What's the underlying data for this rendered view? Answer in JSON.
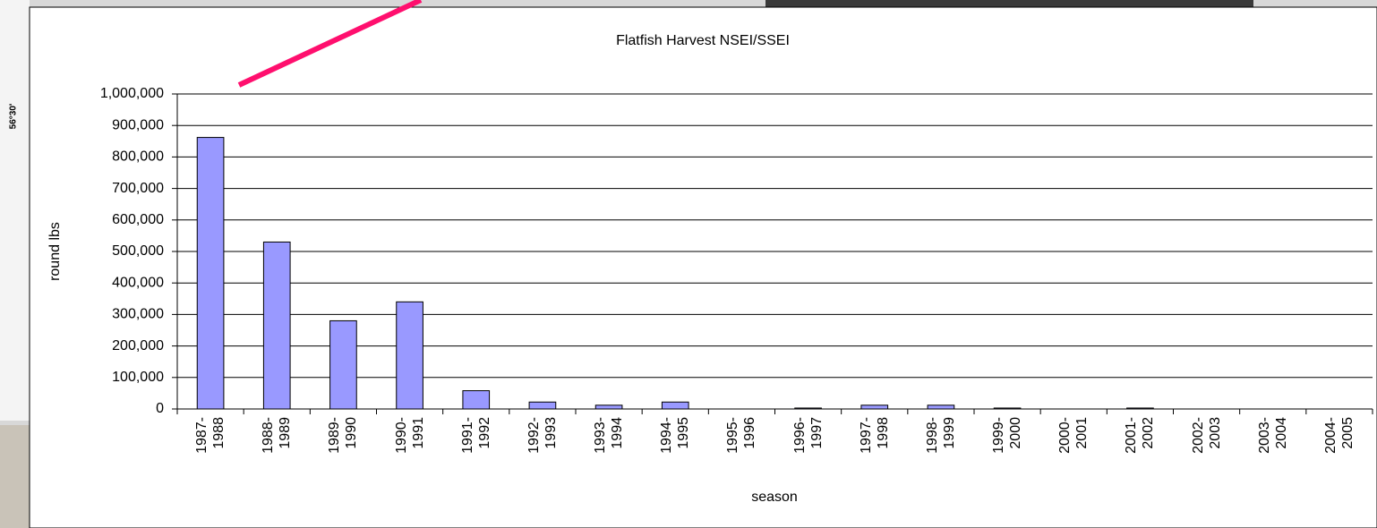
{
  "background": {
    "map_label": "56°30'"
  },
  "chart_data": {
    "type": "bar",
    "title": "Flatfish Harvest NSEI/SSEI",
    "x_label": "season",
    "y_label": "round lbs",
    "categories": [
      "1987-1988",
      "1988-1989",
      "1989-1990",
      "1990-1991",
      "1991-1992",
      "1992-1993",
      "1993-1994",
      "1994-1995",
      "1995-1996",
      "1996-1997",
      "1997-1998",
      "1998-1999",
      "1999-2000",
      "2000-2001",
      "2001-2002",
      "2002-2003",
      "2003-2004",
      "2004-2005"
    ],
    "values": [
      862000,
      530000,
      280000,
      340000,
      58000,
      22000,
      12000,
      22000,
      0,
      3000,
      12000,
      12000,
      3000,
      0,
      3000,
      0,
      0,
      0
    ],
    "color": "#9999ff",
    "ylim": [
      0,
      1000000
    ],
    "yticks": [
      0,
      {
        "value": 100000,
        "label": "100,000"
      },
      {
        "value": 200000,
        "label": "200,000"
      },
      {
        "value": 300000,
        "label": "300,000"
      },
      {
        "value": 400000,
        "label": "400,000"
      },
      {
        "value": 500000,
        "label": "500,000"
      },
      {
        "value": 600000,
        "label": "600,000"
      },
      {
        "value": 700000,
        "label": "700,000"
      },
      {
        "value": 800000,
        "label": "800,000"
      },
      {
        "value": 900000,
        "label": "900,000"
      },
      {
        "value": 1000000,
        "label": "1,000,000"
      }
    ],
    "grid": true
  }
}
